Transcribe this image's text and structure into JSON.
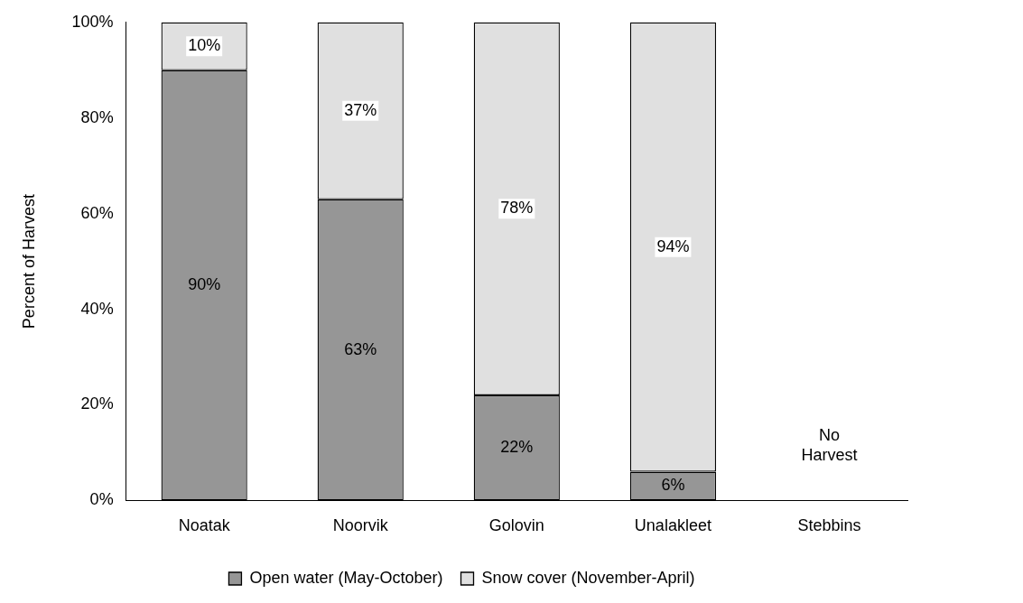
{
  "chart_data": {
    "type": "bar",
    "stacked": true,
    "ylabel": "Percent of Harvest",
    "categories": [
      "Noatak",
      "Noorvik",
      "Golovin",
      "Unalakleet",
      "Stebbins"
    ],
    "series": [
      {
        "name": "Open water (May-October)",
        "color": "#969696",
        "values": [
          90,
          63,
          22,
          6,
          null
        ],
        "value_labels": [
          "90%",
          "63%",
          "22%",
          "6%",
          null
        ]
      },
      {
        "name": "Snow cover (November-April)",
        "color": "#e0e0e0",
        "values": [
          10,
          37,
          78,
          94,
          null
        ],
        "value_labels": [
          "10%",
          "37%",
          "78%",
          "94%",
          null
        ]
      }
    ],
    "ylim": [
      0,
      100
    ],
    "yticks": [
      {
        "value": 0,
        "label": "0%"
      },
      {
        "value": 20,
        "label": "20%"
      },
      {
        "value": 40,
        "label": "40%"
      },
      {
        "value": 60,
        "label": "60%"
      },
      {
        "value": 80,
        "label": "80%"
      },
      {
        "value": 100,
        "label": "100%"
      }
    ],
    "grid": false,
    "legend": "bottom",
    "annotations": [
      "No Harvest"
    ]
  }
}
